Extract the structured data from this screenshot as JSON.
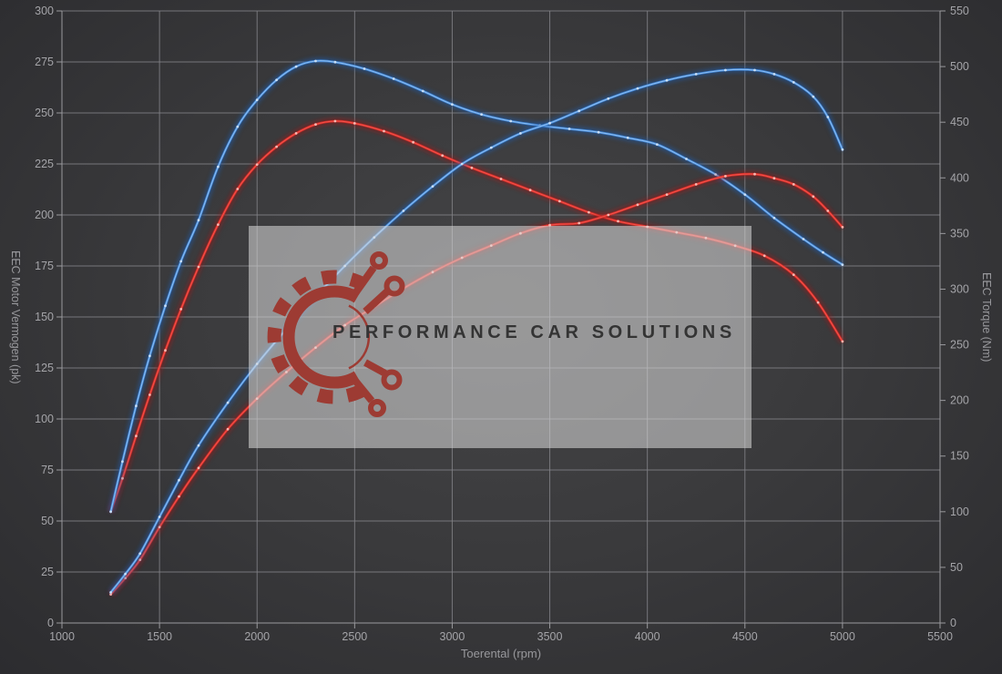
{
  "watermark": {
    "brand": "PERFORMANCE CAR SOLUTIONS"
  },
  "colors": {
    "grid": "#828287",
    "spine": "#9a9a9e",
    "tick_text": "#a4a4a8",
    "axis_title": "#98989c",
    "watermark_bg": "rgba(218,218,218,0.56)",
    "logo_red": "#9d3b33",
    "brand_text": "#343434",
    "blue_line": "#3f86d8",
    "red_line": "#d92b25"
  },
  "chart_data": {
    "type": "line",
    "title": "",
    "xlabel": "Toerental (rpm)",
    "ylabel_left": "EEC Motor Vermogen (pk)",
    "ylabel_right": "EEC Torque (Nm)",
    "grid": true,
    "legend": false,
    "x_range": [
      1000,
      5500
    ],
    "y_left_range": [
      0,
      300
    ],
    "y_right_range": [
      0,
      550
    ],
    "x_ticks": [
      1000,
      1500,
      2000,
      2500,
      3000,
      3500,
      4000,
      4500,
      5000,
      5500
    ],
    "y_left_ticks": [
      0,
      25,
      50,
      75,
      100,
      125,
      150,
      175,
      200,
      225,
      250,
      275,
      300
    ],
    "y_right_ticks": [
      0,
      50,
      100,
      150,
      200,
      250,
      300,
      350,
      400,
      450,
      500,
      550
    ],
    "series": [
      {
        "id": "torque-red",
        "axis": "right",
        "unit": "Nm",
        "color": "#d92b25",
        "core": "#f2554e",
        "glow": "#a01815",
        "dot": "#ffc9c2",
        "points": [
          [
            1250,
            100
          ],
          [
            1310,
            130
          ],
          [
            1380,
            168
          ],
          [
            1450,
            205
          ],
          [
            1530,
            245
          ],
          [
            1610,
            282
          ],
          [
            1700,
            320
          ],
          [
            1800,
            358
          ],
          [
            1900,
            390
          ],
          [
            2000,
            412
          ],
          [
            2100,
            428
          ],
          [
            2200,
            440
          ],
          [
            2300,
            448
          ],
          [
            2400,
            451
          ],
          [
            2500,
            449
          ],
          [
            2650,
            442
          ],
          [
            2800,
            432
          ],
          [
            2950,
            420
          ],
          [
            3100,
            409
          ],
          [
            3250,
            399
          ],
          [
            3400,
            389
          ],
          [
            3550,
            379
          ],
          [
            3700,
            369
          ],
          [
            3850,
            361
          ],
          [
            4000,
            356
          ],
          [
            4150,
            351
          ],
          [
            4300,
            346
          ],
          [
            4450,
            339
          ],
          [
            4600,
            330
          ],
          [
            4750,
            313
          ],
          [
            4875,
            288
          ],
          [
            5000,
            253
          ]
        ]
      },
      {
        "id": "torque-blue",
        "axis": "right",
        "unit": "Nm",
        "color": "#3f86d8",
        "core": "#8fc0f2",
        "glow": "#1c5cae",
        "dot": "#d6e6f8",
        "points": [
          [
            1250,
            100
          ],
          [
            1310,
            145
          ],
          [
            1380,
            195
          ],
          [
            1450,
            240
          ],
          [
            1530,
            285
          ],
          [
            1610,
            325
          ],
          [
            1700,
            362
          ],
          [
            1800,
            410
          ],
          [
            1900,
            446
          ],
          [
            2000,
            470
          ],
          [
            2100,
            488
          ],
          [
            2200,
            500
          ],
          [
            2300,
            505
          ],
          [
            2400,
            504
          ],
          [
            2550,
            498
          ],
          [
            2700,
            489
          ],
          [
            2850,
            478
          ],
          [
            3000,
            466
          ],
          [
            3150,
            457
          ],
          [
            3300,
            451
          ],
          [
            3450,
            447
          ],
          [
            3600,
            444
          ],
          [
            3750,
            441
          ],
          [
            3900,
            436
          ],
          [
            4050,
            430
          ],
          [
            4200,
            417
          ],
          [
            4350,
            403
          ],
          [
            4500,
            385
          ],
          [
            4650,
            364
          ],
          [
            4800,
            345
          ],
          [
            4900,
            333
          ],
          [
            5000,
            322
          ]
        ]
      },
      {
        "id": "power-red",
        "axis": "left",
        "unit": "pk",
        "color": "#d92b25",
        "core": "#f2554e",
        "glow": "#a01815",
        "dot": "#ffc9c2",
        "points": [
          [
            1250,
            14
          ],
          [
            1325,
            22
          ],
          [
            1400,
            31
          ],
          [
            1500,
            47
          ],
          [
            1600,
            62
          ],
          [
            1700,
            76
          ],
          [
            1850,
            95
          ],
          [
            2000,
            110
          ],
          [
            2150,
            123
          ],
          [
            2300,
            135
          ],
          [
            2450,
            146
          ],
          [
            2600,
            155
          ],
          [
            2750,
            164
          ],
          [
            2900,
            172
          ],
          [
            3050,
            179
          ],
          [
            3200,
            185
          ],
          [
            3350,
            191
          ],
          [
            3500,
            195
          ],
          [
            3650,
            196
          ],
          [
            3800,
            200
          ],
          [
            3950,
            205
          ],
          [
            4100,
            210
          ],
          [
            4250,
            215
          ],
          [
            4400,
            219
          ],
          [
            4550,
            220
          ],
          [
            4650,
            218
          ],
          [
            4750,
            215
          ],
          [
            4850,
            209
          ],
          [
            4925,
            202
          ],
          [
            5000,
            194
          ]
        ]
      },
      {
        "id": "power-blue",
        "axis": "left",
        "unit": "pk",
        "color": "#3f86d8",
        "core": "#8fc0f2",
        "glow": "#1c5cae",
        "dot": "#d6e6f8",
        "points": [
          [
            1250,
            15
          ],
          [
            1325,
            24
          ],
          [
            1400,
            34
          ],
          [
            1500,
            52
          ],
          [
            1600,
            70
          ],
          [
            1700,
            87
          ],
          [
            1850,
            108
          ],
          [
            2000,
            127
          ],
          [
            2150,
            144
          ],
          [
            2300,
            160
          ],
          [
            2450,
            175
          ],
          [
            2600,
            189
          ],
          [
            2750,
            202
          ],
          [
            2900,
            214
          ],
          [
            3050,
            225
          ],
          [
            3200,
            233
          ],
          [
            3350,
            240
          ],
          [
            3500,
            245
          ],
          [
            3650,
            251
          ],
          [
            3800,
            257
          ],
          [
            3950,
            262
          ],
          [
            4100,
            266
          ],
          [
            4250,
            269
          ],
          [
            4400,
            271
          ],
          [
            4550,
            271
          ],
          [
            4650,
            269
          ],
          [
            4750,
            265
          ],
          [
            4850,
            258
          ],
          [
            4925,
            248
          ],
          [
            5000,
            232
          ]
        ]
      }
    ]
  }
}
